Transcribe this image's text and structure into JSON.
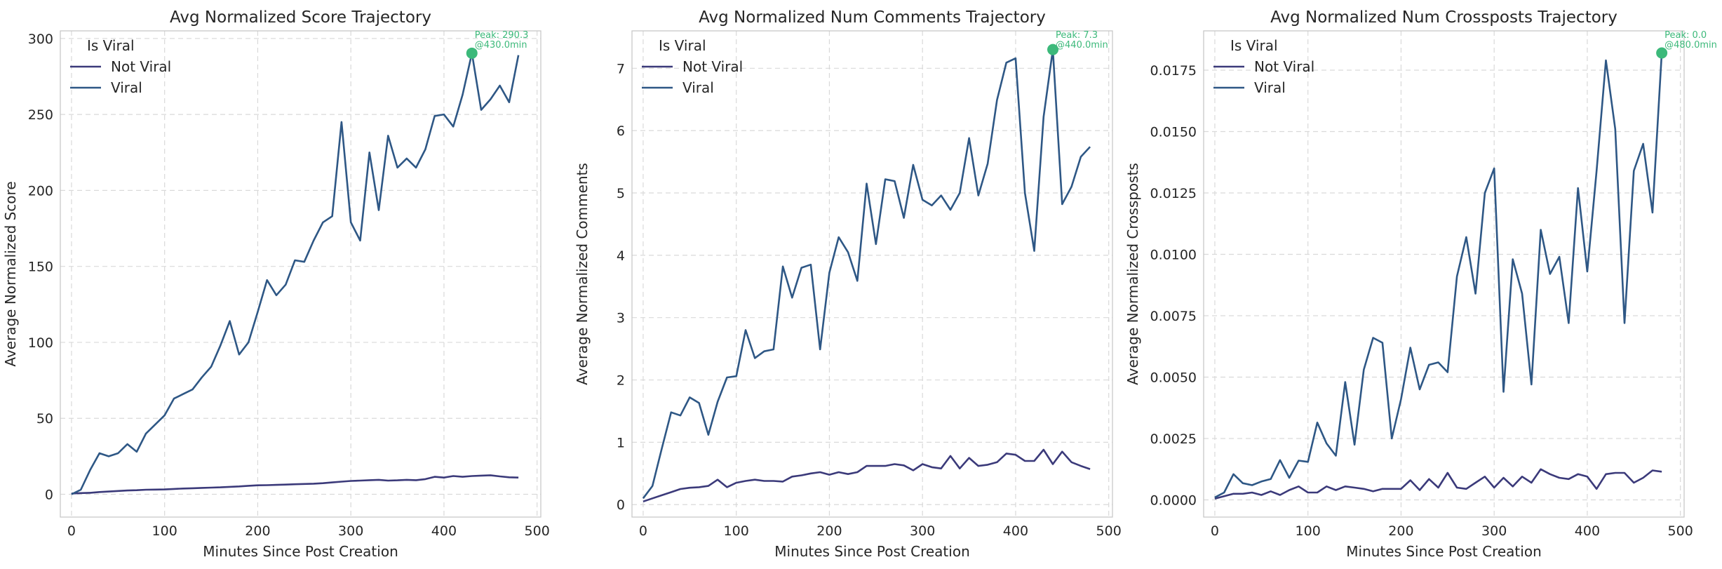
{
  "colors": {
    "not_viral": "#3b3a7a",
    "viral": "#2e5785",
    "peak": "#3cb97a",
    "grid": "#d9d9d9",
    "frame": "#c8c8c8",
    "text": "#262626"
  },
  "chart_data": [
    {
      "type": "line",
      "title": "Avg Normalized Score Trajectory",
      "xlabel": "Minutes Since Post Creation",
      "ylabel": "Average Normalized Score",
      "xlim": [
        -12,
        504
      ],
      "ylim": [
        -15,
        305
      ],
      "xticks": [
        0,
        100,
        200,
        300,
        400,
        500
      ],
      "yticks": [
        0,
        50,
        100,
        150,
        200,
        250,
        300
      ],
      "ytick_labels": [
        "0",
        "50",
        "100",
        "150",
        "200",
        "250",
        "300"
      ],
      "legend": {
        "title": "Is Viral",
        "placement": "top-left",
        "entries": [
          "Not Viral",
          "Viral"
        ]
      },
      "peak": {
        "x": 430,
        "y": 290.3,
        "label": "Peak: 290.3",
        "sublabel": "@430.0min"
      },
      "x": [
        0,
        10,
        20,
        30,
        40,
        50,
        60,
        70,
        80,
        90,
        100,
        110,
        120,
        130,
        140,
        150,
        160,
        170,
        180,
        190,
        200,
        210,
        220,
        230,
        240,
        250,
        260,
        270,
        280,
        290,
        300,
        310,
        320,
        330,
        340,
        350,
        360,
        370,
        380,
        390,
        400,
        410,
        420,
        430,
        440,
        450,
        460,
        470,
        480
      ],
      "series": [
        {
          "name": "Not Viral",
          "values": [
            0.5,
            0.8,
            1.0,
            1.5,
            1.8,
            2.2,
            2.5,
            2.7,
            3.0,
            3.1,
            3.2,
            3.5,
            3.8,
            4.0,
            4.2,
            4.4,
            4.6,
            4.9,
            5.2,
            5.6,
            5.9,
            6.0,
            6.2,
            6.4,
            6.6,
            6.8,
            7.0,
            7.3,
            7.8,
            8.3,
            8.8,
            9.0,
            9.3,
            9.5,
            9.0,
            9.2,
            9.5,
            9.3,
            10.0,
            11.5,
            11.0,
            12.0,
            11.5,
            12.0,
            12.3,
            12.5,
            11.8,
            11.2,
            11.0
          ]
        },
        {
          "name": "Viral",
          "values": [
            0,
            3,
            16,
            27,
            25,
            27,
            33,
            28,
            40,
            46,
            52,
            63,
            66,
            69,
            77,
            84,
            98,
            114,
            92,
            100,
            120,
            141,
            131,
            138,
            154,
            153,
            167,
            179,
            183,
            245,
            179,
            167,
            225,
            187,
            236,
            215,
            221,
            215,
            227,
            249,
            250,
            242,
            263,
            290.3,
            253,
            260,
            269,
            258,
            289
          ]
        }
      ]
    },
    {
      "type": "line",
      "title": "Avg Normalized Num Comments Trajectory",
      "xlabel": "Minutes Since Post Creation",
      "ylabel": "Average Normalized Comments",
      "xlim": [
        -12,
        504
      ],
      "ylim": [
        -0.2,
        7.6
      ],
      "xticks": [
        0,
        100,
        200,
        300,
        400,
        500
      ],
      "yticks": [
        0,
        1,
        2,
        3,
        4,
        5,
        6,
        7
      ],
      "ytick_labels": [
        "0",
        "1",
        "2",
        "3",
        "4",
        "5",
        "6",
        "7"
      ],
      "legend": {
        "title": "Is Viral",
        "placement": "top-left",
        "entries": [
          "Not Viral",
          "Viral"
        ]
      },
      "peak": {
        "x": 440,
        "y": 7.3,
        "label": "Peak: 7.3",
        "sublabel": "@440.0min"
      },
      "x": [
        0,
        10,
        20,
        30,
        40,
        50,
        60,
        70,
        80,
        90,
        100,
        110,
        120,
        130,
        140,
        150,
        160,
        170,
        180,
        190,
        200,
        210,
        220,
        230,
        240,
        250,
        260,
        270,
        280,
        290,
        300,
        310,
        320,
        330,
        340,
        350,
        360,
        370,
        380,
        390,
        400,
        410,
        420,
        430,
        440,
        450,
        460,
        470,
        480
      ],
      "series": [
        {
          "name": "Not Viral",
          "values": [
            0.05,
            0.1,
            0.15,
            0.2,
            0.25,
            0.27,
            0.28,
            0.3,
            0.4,
            0.28,
            0.35,
            0.38,
            0.4,
            0.38,
            0.38,
            0.37,
            0.45,
            0.47,
            0.5,
            0.52,
            0.48,
            0.52,
            0.49,
            0.52,
            0.62,
            0.62,
            0.62,
            0.65,
            0.63,
            0.55,
            0.65,
            0.6,
            0.58,
            0.78,
            0.58,
            0.75,
            0.62,
            0.64,
            0.68,
            0.82,
            0.8,
            0.7,
            0.7,
            0.88,
            0.65,
            0.85,
            0.68,
            0.62,
            0.57
          ]
        },
        {
          "name": "Viral",
          "values": [
            0.1,
            0.3,
            0.9,
            1.48,
            1.43,
            1.72,
            1.63,
            1.12,
            1.65,
            2.04,
            2.06,
            2.8,
            2.35,
            2.46,
            2.49,
            3.82,
            3.32,
            3.8,
            3.85,
            2.49,
            3.72,
            4.29,
            4.05,
            3.59,
            5.15,
            4.18,
            5.22,
            5.19,
            4.6,
            5.45,
            4.89,
            4.8,
            4.96,
            4.73,
            5.0,
            5.88,
            4.96,
            5.47,
            6.49,
            7.09,
            7.16,
            5.0,
            4.07,
            6.22,
            7.3,
            4.82,
            5.1,
            5.58,
            5.74
          ]
        }
      ]
    },
    {
      "type": "line",
      "title": "Avg Normalized Num Crossposts Trajectory",
      "xlabel": "Minutes Since Post Creation",
      "ylabel": "Average Normalized Crossposts",
      "xlim": [
        -12,
        504
      ],
      "ylim": [
        -0.0007,
        0.0191
      ],
      "xticks": [
        0,
        100,
        200,
        300,
        400,
        500
      ],
      "yticks": [
        0,
        0.0025,
        0.005,
        0.0075,
        0.01,
        0.0125,
        0.015,
        0.0175
      ],
      "ytick_labels": [
        "0.0000",
        "0.0025",
        "0.0050",
        "0.0075",
        "0.0100",
        "0.0125",
        "0.0150",
        "0.0175"
      ],
      "legend": {
        "title": "Is Viral",
        "placement": "top-left",
        "entries": [
          "Not Viral",
          "Viral"
        ]
      },
      "peak": {
        "x": 480,
        "y": 0.0182,
        "label": "Peak: 0.0",
        "sublabel": "@480.0min"
      },
      "x": [
        0,
        10,
        20,
        30,
        40,
        50,
        60,
        70,
        80,
        90,
        100,
        110,
        120,
        130,
        140,
        150,
        160,
        170,
        180,
        190,
        200,
        210,
        220,
        230,
        240,
        250,
        260,
        270,
        280,
        290,
        300,
        310,
        320,
        330,
        340,
        350,
        360,
        370,
        380,
        390,
        400,
        410,
        420,
        430,
        440,
        450,
        460,
        470,
        480
      ],
      "series": [
        {
          "name": "Not Viral",
          "values": [
            5e-05,
            0.00015,
            0.00025,
            0.00025,
            0.0003,
            0.0002,
            0.00035,
            0.0002,
            0.0004,
            0.00055,
            0.0003,
            0.0003,
            0.00055,
            0.0004,
            0.00055,
            0.0005,
            0.00045,
            0.00035,
            0.00045,
            0.00045,
            0.00045,
            0.0008,
            0.0004,
            0.00085,
            0.0005,
            0.0011,
            0.0005,
            0.00045,
            0.0007,
            0.00095,
            0.0005,
            0.0009,
            0.00055,
            0.00095,
            0.0007,
            0.00125,
            0.00105,
            0.0009,
            0.00085,
            0.00105,
            0.00095,
            0.00045,
            0.00105,
            0.0011,
            0.0011,
            0.0007,
            0.0009,
            0.0012,
            0.00115
          ]
        },
        {
          "name": "Viral",
          "values": [
            0.0001,
            0.0003,
            0.00105,
            0.00068,
            0.0006,
            0.00075,
            0.00085,
            0.00162,
            0.0009,
            0.0016,
            0.00155,
            0.00315,
            0.0023,
            0.0018,
            0.0048,
            0.00225,
            0.0053,
            0.0066,
            0.0064,
            0.0025,
            0.0041,
            0.0062,
            0.0045,
            0.0055,
            0.0056,
            0.0052,
            0.0091,
            0.0107,
            0.0084,
            0.0125,
            0.0135,
            0.0044,
            0.0098,
            0.0084,
            0.0047,
            0.011,
            0.0092,
            0.0099,
            0.0072,
            0.0127,
            0.0093,
            0.0134,
            0.0179,
            0.0151,
            0.0072,
            0.0134,
            0.0145,
            0.0117,
            0.0182
          ]
        }
      ]
    }
  ]
}
